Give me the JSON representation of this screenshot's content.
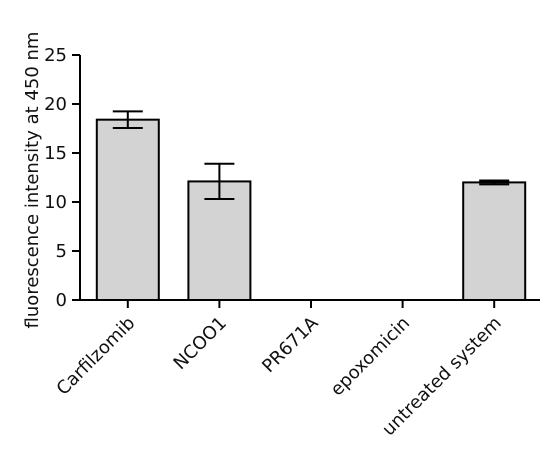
{
  "chart_data": {
    "type": "bar",
    "title": "",
    "xlabel": "",
    "ylabel": "fluorescence intensity at 450 nm",
    "ylim": [
      0,
      25
    ],
    "yticks": [
      0,
      5,
      10,
      15,
      20,
      25
    ],
    "grid": false,
    "categories": [
      "Carfilzomib",
      "NCOO1",
      "PR671A",
      "epoxomicin",
      "untreated system"
    ],
    "values": [
      18.4,
      12.1,
      0,
      0,
      12.0
    ],
    "error": [
      0.85,
      1.8,
      0,
      0,
      0.2
    ],
    "colors": {
      "bar_fill": "#d3d3d3",
      "bar_stroke": "#000000",
      "axis": "#000000"
    }
  }
}
